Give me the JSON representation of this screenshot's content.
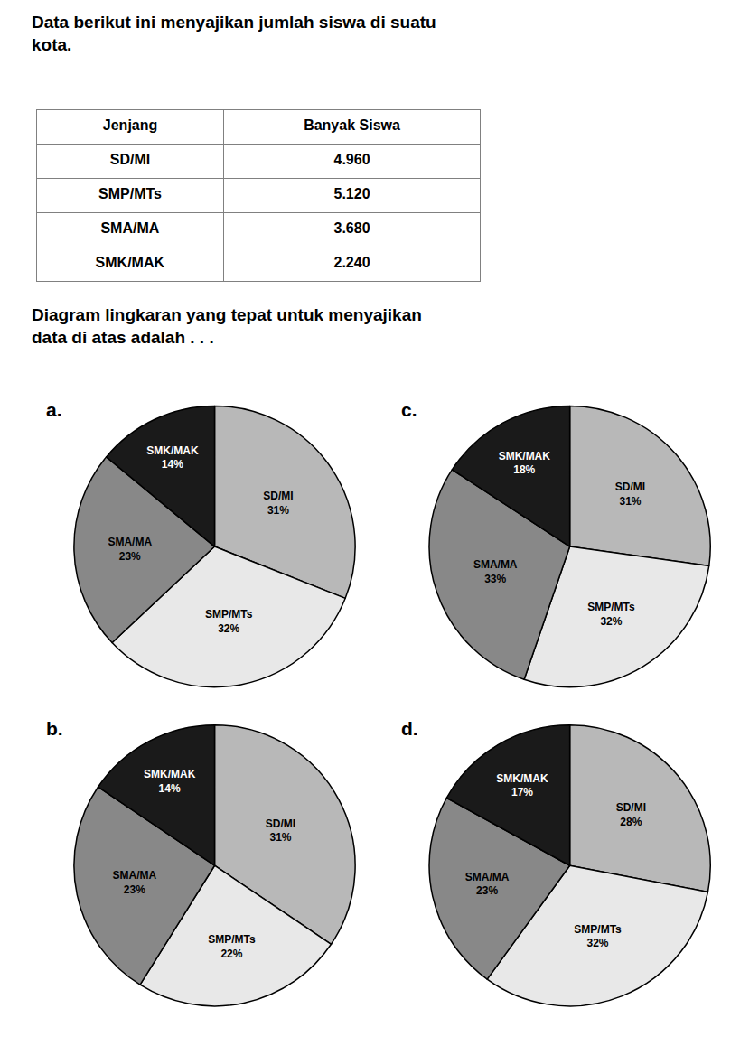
{
  "title": "Data berikut ini menyajikan jumlah siswa di suatu\nkota.",
  "subtitle": "Diagram lingkaran yang tepat untuk menyajikan\ndata di atas adalah . . .",
  "chart_data": [
    {
      "type": "table",
      "columns": [
        "Jenjang",
        "Banyak Siswa"
      ],
      "categories": [
        "SD/MI",
        "SMP/MTs",
        "SMA/MA",
        "SMK/MAK"
      ],
      "values": [
        4960,
        5120,
        3680,
        2240
      ],
      "value_labels": [
        "4.960",
        "5.120",
        "3.680",
        "2.240"
      ]
    },
    {
      "type": "pie",
      "title": "a.",
      "data_labels": true,
      "categories": [
        "SD/MI",
        "SMP/MTs",
        "SMA/MA",
        "SMK/MAK"
      ],
      "values": [
        31,
        32,
        23,
        14
      ],
      "value_labels": [
        "31%",
        "32%",
        "23%",
        "14%"
      ],
      "colors": [
        "#b8b8b8",
        "#e8e8e8",
        "#888888",
        "#1a1a1a"
      ]
    },
    {
      "type": "pie",
      "title": "c.",
      "data_labels": true,
      "categories": [
        "SD/MI",
        "SMP/MTs",
        "SMA/MA",
        "SMK/MAK"
      ],
      "values": [
        31,
        32,
        33,
        18
      ],
      "value_labels": [
        "31%",
        "32%",
        "33%",
        "18%"
      ],
      "colors": [
        "#b8b8b8",
        "#e8e8e8",
        "#888888",
        "#1a1a1a"
      ]
    },
    {
      "type": "pie",
      "title": "b.",
      "data_labels": true,
      "categories": [
        "SD/MI",
        "SMP/MTs",
        "SMA/MA",
        "SMK/MAK"
      ],
      "values": [
        31,
        22,
        23,
        14
      ],
      "value_labels": [
        "31%",
        "22%",
        "23%",
        "14%"
      ],
      "colors": [
        "#b8b8b8",
        "#e8e8e8",
        "#888888",
        "#1a1a1a"
      ]
    },
    {
      "type": "pie",
      "title": "d.",
      "data_labels": true,
      "categories": [
        "SD/MI",
        "SMP/MTs",
        "SMA/MA",
        "SMK/MAK"
      ],
      "values": [
        28,
        32,
        23,
        17
      ],
      "value_labels": [
        "28%",
        "32%",
        "23%",
        "17%"
      ],
      "colors": [
        "#b8b8b8",
        "#e8e8e8",
        "#888888",
        "#1a1a1a"
      ]
    }
  ]
}
